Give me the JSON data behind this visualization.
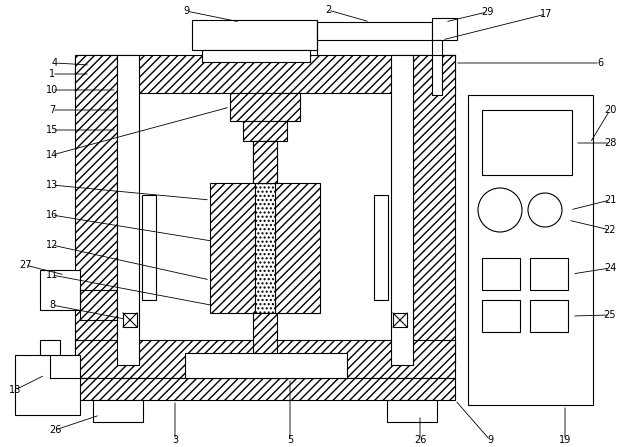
{
  "fig_width": 6.19,
  "fig_height": 4.47,
  "dpi": 100,
  "bg_color": "#ffffff",
  "lw": 0.8
}
